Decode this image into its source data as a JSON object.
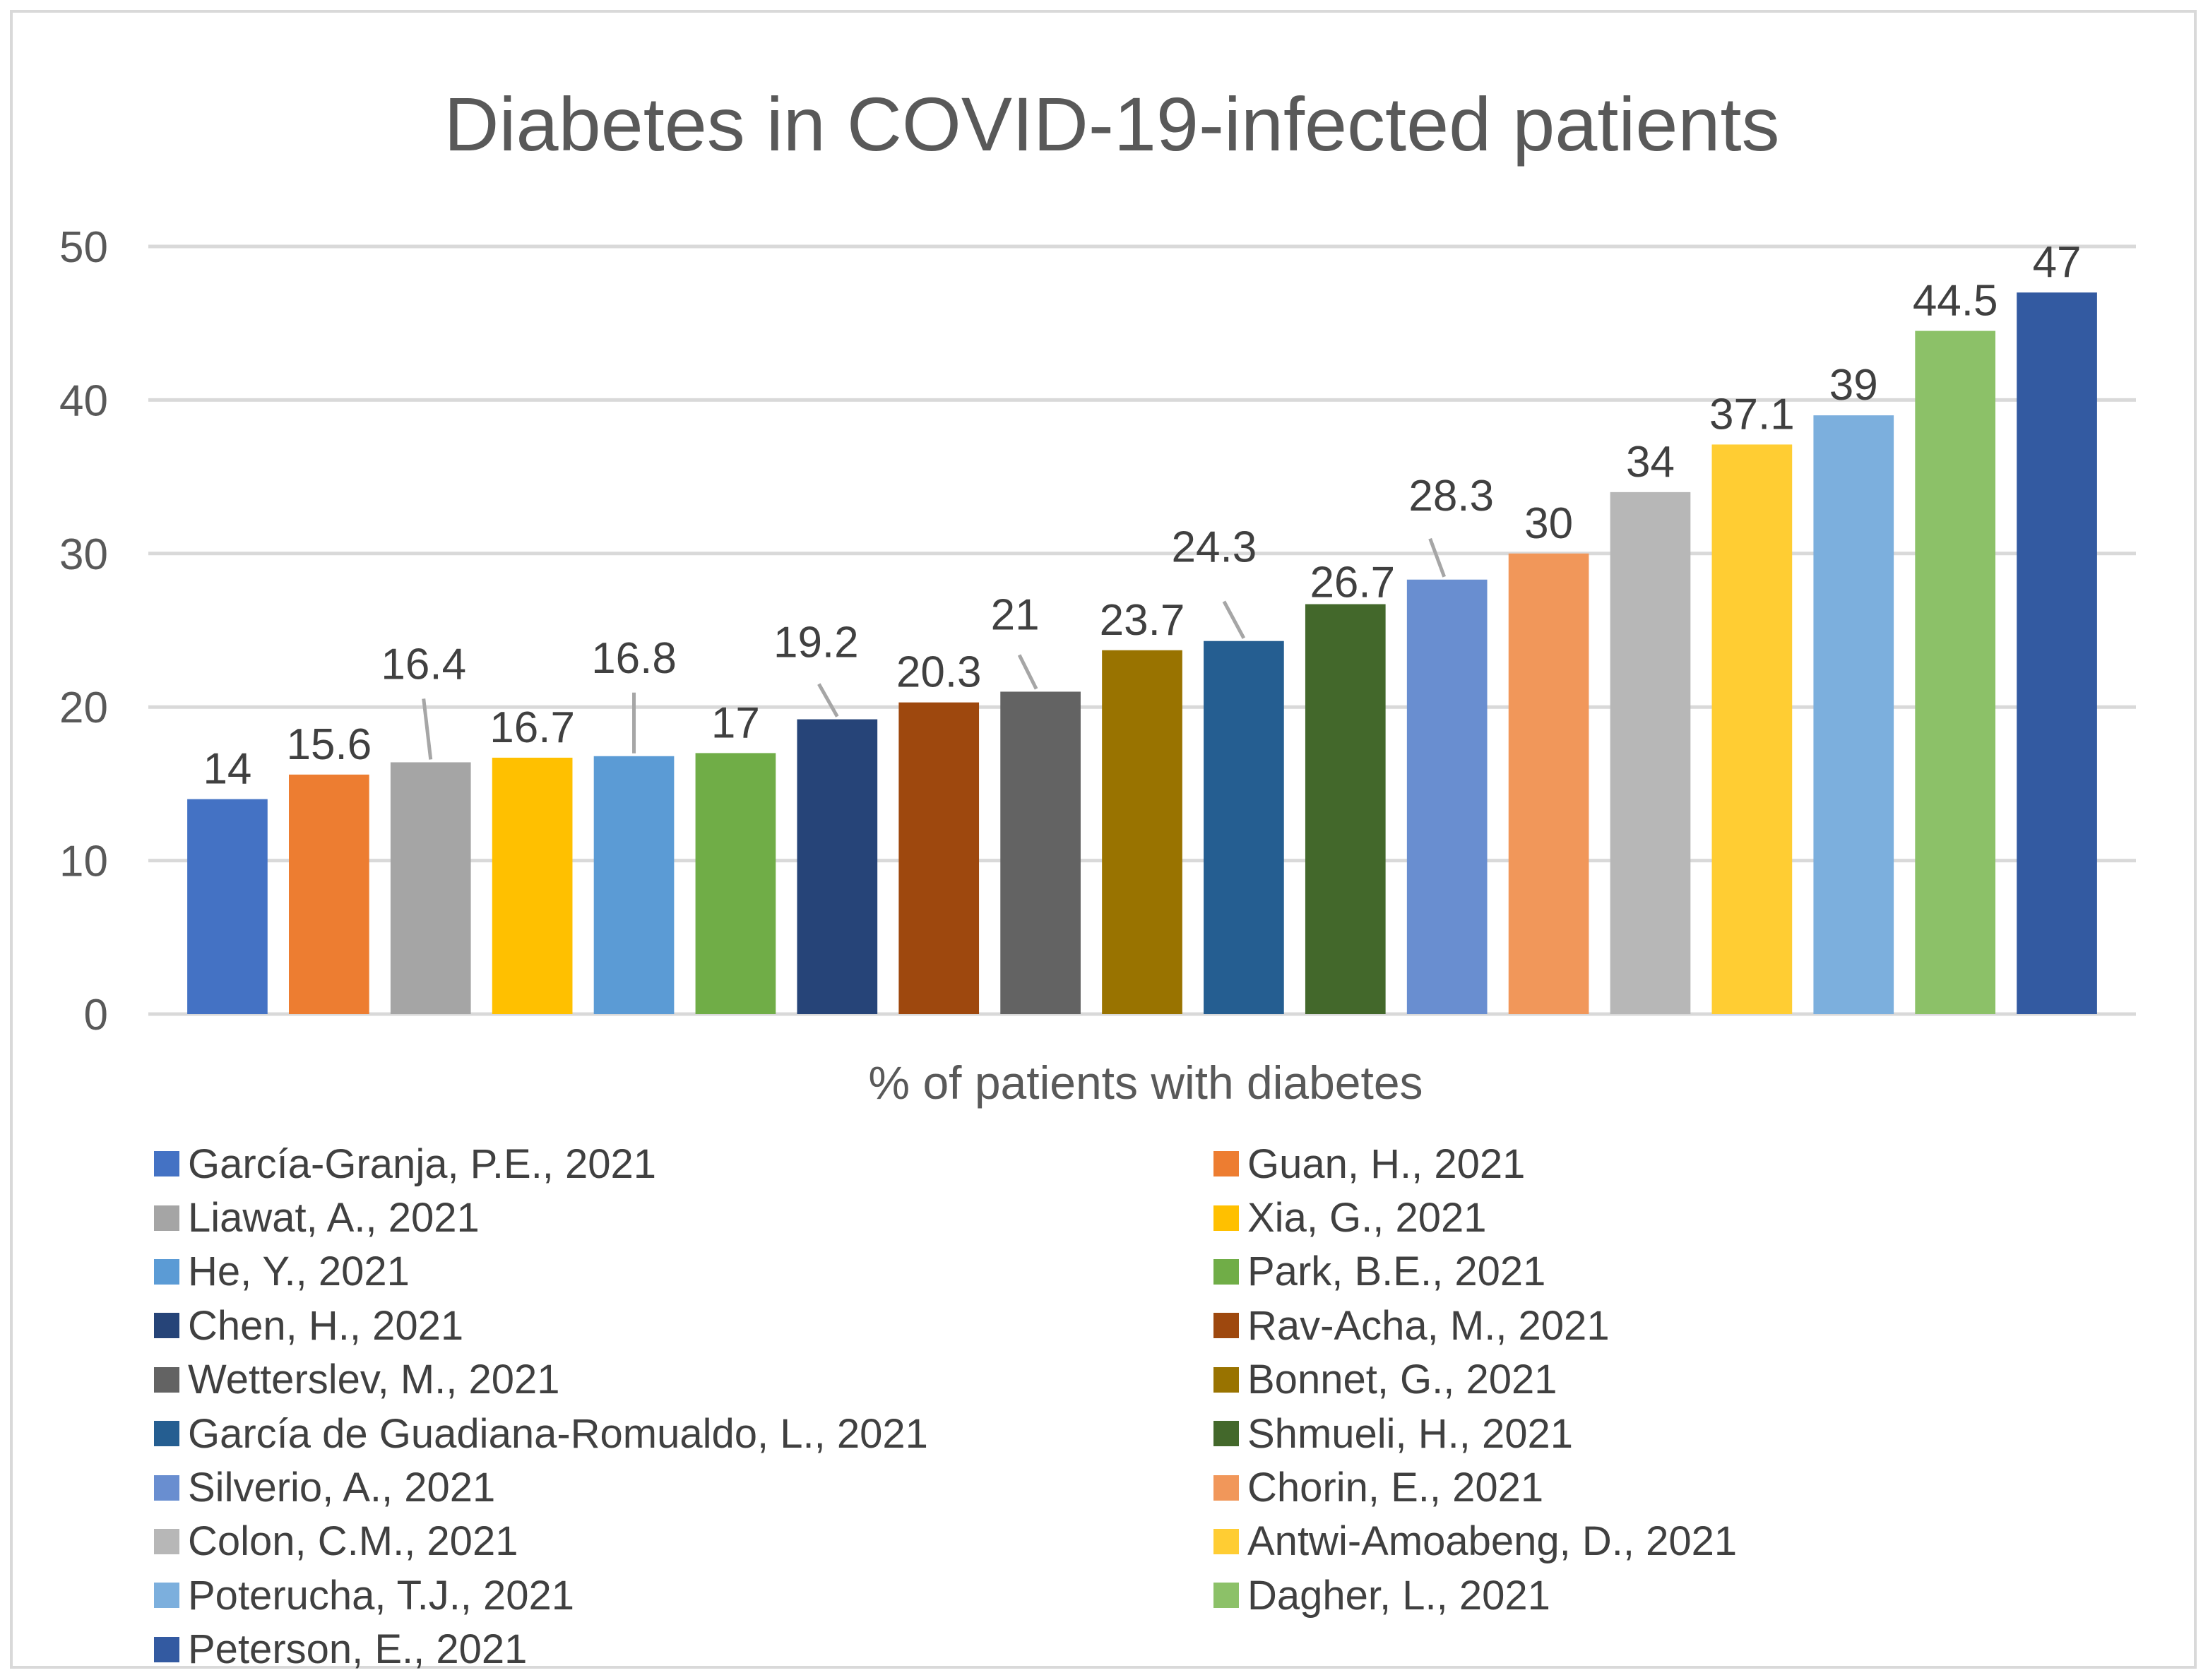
{
  "chart_data": {
    "type": "bar",
    "title": "Diabetes in COVID-19-infected patients",
    "xlabel": "% of patients with diabetes",
    "ylabel": "",
    "ylim": [
      0,
      50
    ],
    "yticks": [
      0,
      10,
      20,
      30,
      40,
      50
    ],
    "grid": true,
    "legend_position": "bottom",
    "series": [
      {
        "name": "García-Granja, P.E., 2021",
        "value": 14,
        "label": "14",
        "color": "#4472C4"
      },
      {
        "name": "Guan, H., 2021",
        "value": 15.6,
        "label": "15.6",
        "color": "#ED7D31"
      },
      {
        "name": "Liawat, A., 2021",
        "value": 16.4,
        "label": "16.4",
        "color": "#A5A5A5"
      },
      {
        "name": "Xia, G., 2021",
        "value": 16.7,
        "label": "16.7",
        "color": "#FFC000"
      },
      {
        "name": "He, Y., 2021",
        "value": 16.8,
        "label": "16.8",
        "color": "#5B9BD5"
      },
      {
        "name": "Park, B.E., 2021",
        "value": 17,
        "label": "17",
        "color": "#70AD47"
      },
      {
        "name": "Chen, H., 2021",
        "value": 19.2,
        "label": "19.2",
        "color": "#264478"
      },
      {
        "name": "Rav-Acha, M., 2021",
        "value": 20.3,
        "label": "20.3",
        "color": "#9E480E"
      },
      {
        "name": "Wetterslev, M., 2021",
        "value": 21,
        "label": "21",
        "color": "#636363"
      },
      {
        "name": "Bonnet, G., 2021",
        "value": 23.7,
        "label": "23.7",
        "color": "#997300"
      },
      {
        "name": "García de Guadiana-Romualdo, L., 2021",
        "value": 24.3,
        "label": "24.3",
        "color": "#255E91"
      },
      {
        "name": "Shmueli, H., 2021",
        "value": 26.7,
        "label": "26.7",
        "color": "#43682B"
      },
      {
        "name": "Silverio, A., 2021",
        "value": 28.3,
        "label": "28.3",
        "color": "#698ED0"
      },
      {
        "name": "Chorin, E., 2021",
        "value": 30,
        "label": "30",
        "color": "#F1975A"
      },
      {
        "name": "Colon, C.M., 2021",
        "value": 34,
        "label": "34",
        "color": "#B7B7B7"
      },
      {
        "name": "Antwi-Amoabeng, D., 2021",
        "value": 37.1,
        "label": "37.1",
        "color": "#FFCD33"
      },
      {
        "name": "Poterucha, T.J., 2021",
        "value": 39,
        "label": "39",
        "color": "#7CAFDD"
      },
      {
        "name": "Dagher, L., 2021",
        "value": 44.5,
        "label": "44.5",
        "color": "#8CC168"
      },
      {
        "name": "Peterson, E., 2021",
        "value": 47,
        "label": "47",
        "color": "#335AA1"
      }
    ]
  }
}
